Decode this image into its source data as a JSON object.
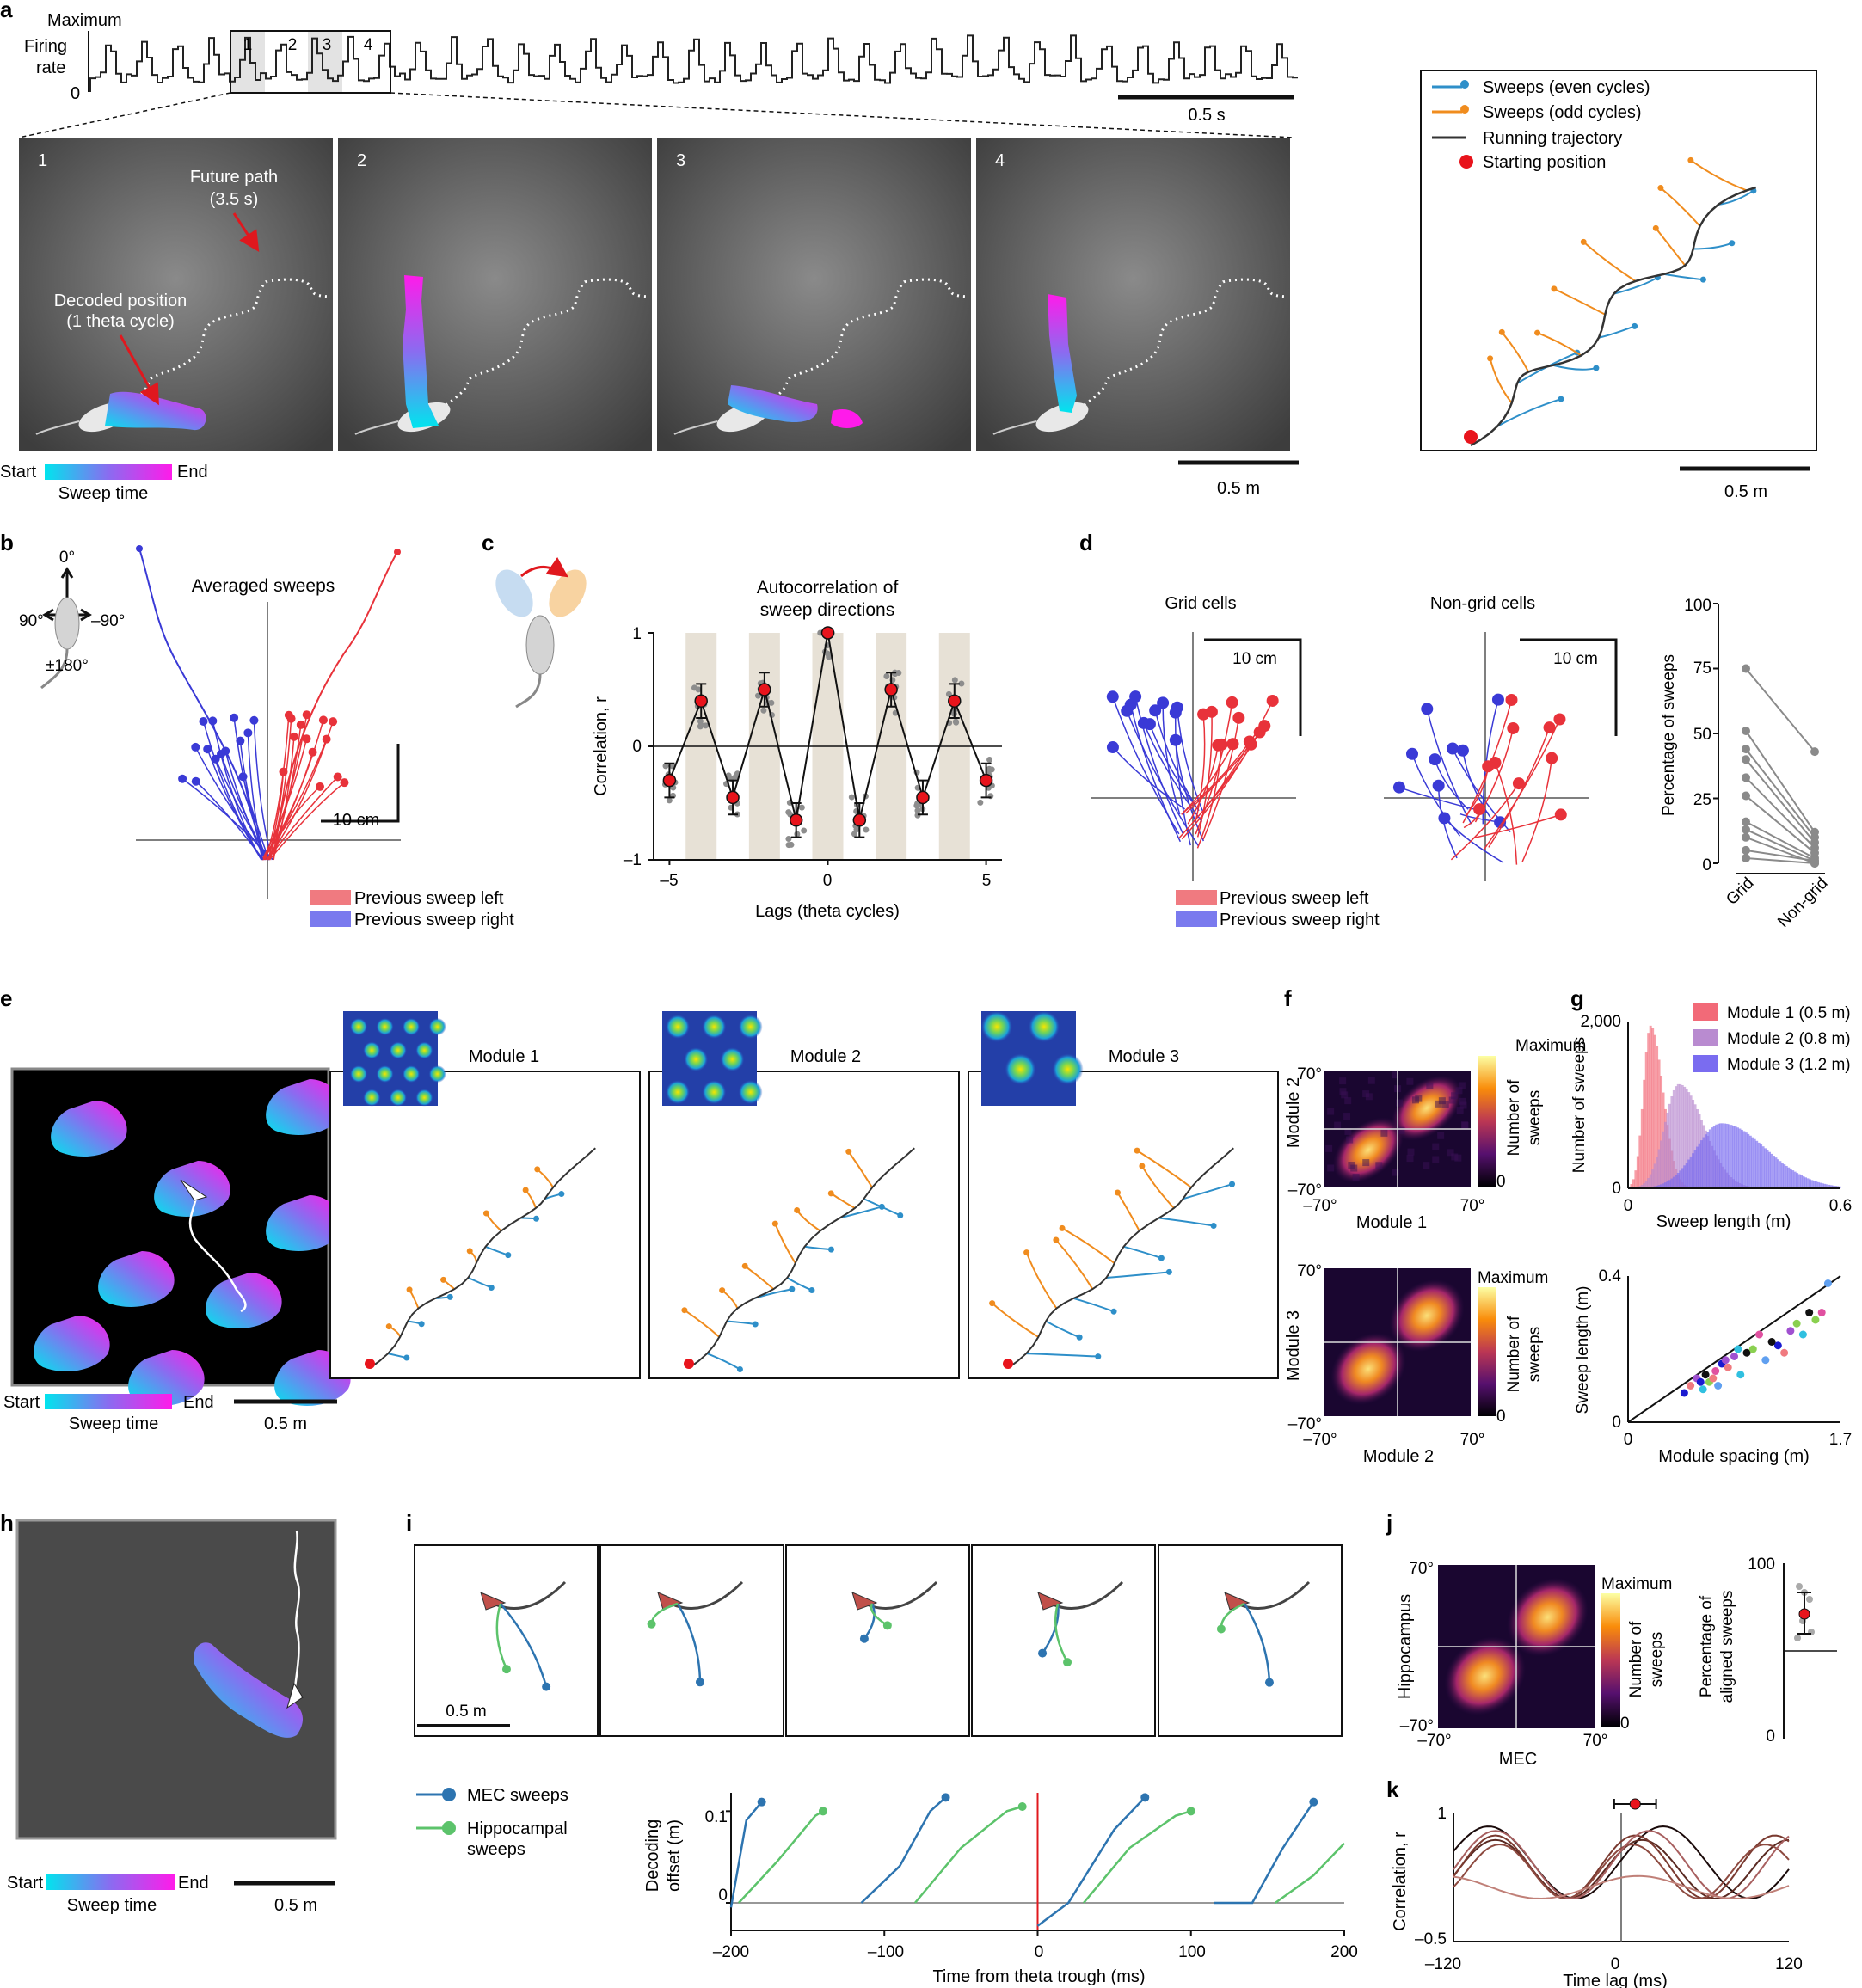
{
  "panel_letters": {
    "a": "a",
    "b": "b",
    "c": "c",
    "d": "d",
    "e": "e",
    "f": "f",
    "g": "g",
    "h": "h",
    "i": "i",
    "j": "j",
    "k": "k"
  },
  "panel_a": {
    "y_max": "Maximum",
    "y_label_1": "Firing",
    "y_label_2": "rate",
    "y_zero": "0",
    "time_scale": "0.5 s",
    "cycles": [
      "1",
      "2",
      "3",
      "4"
    ],
    "frames": [
      "1",
      "2",
      "3",
      "4"
    ],
    "future_path_1": "Future path",
    "future_path_2": "(3.5 s)",
    "decoded_1": "Decoded position",
    "decoded_2": "(1 theta cycle)",
    "colorbar_start": "Start",
    "colorbar_end": "End",
    "colorbar_label": "Sweep time",
    "space_scale": "0.5 m",
    "legend": [
      "Sweeps (even cycles)",
      "Sweeps (odd cycles)",
      "Running trajectory",
      "Starting position"
    ],
    "traj_scale": "0.5 m"
  },
  "panel_b": {
    "title": "Averaged sweeps",
    "angle_top": "0°",
    "angle_left": "90°",
    "angle_right": "–90°",
    "angle_bottom": "±180°",
    "scale": "10 cm",
    "legend": [
      "Previous sweep left",
      "Previous sweep right"
    ]
  },
  "panel_c": {
    "title_1": "Autocorrelation of",
    "title_2": "sweep directions",
    "ylabel": "Correlation, r",
    "xlabel": "Lags (theta cycles)",
    "yticks": [
      "1",
      "0",
      "–1"
    ],
    "xticks": [
      "–5",
      "0",
      "5"
    ]
  },
  "panel_d": {
    "grid_title": "Grid cells",
    "nongrid_title": "Non-grid cells",
    "scale": "10 cm",
    "legend": [
      "Previous sweep left",
      "Previous sweep right"
    ],
    "ylabel": "Percentage of sweeps",
    "yticks": [
      "100",
      "75",
      "50",
      "25",
      "0"
    ],
    "xticks": [
      "Grid",
      "Non-grid"
    ]
  },
  "panel_e": {
    "modules": [
      "Module 1",
      "Module 2",
      "Module 3"
    ],
    "colorbar_start": "Start",
    "colorbar_end": "End",
    "colorbar_label": "Sweep time",
    "scale": "0.5 m"
  },
  "panel_f": {
    "top": {
      "ylabel": "Module 2",
      "xlabel": "Module 1",
      "ymax": "70°",
      "ymin": "–70°",
      "xmin": "–70°",
      "xmax": "70°"
    },
    "bottom": {
      "ylabel": "Module 3",
      "xlabel": "Module 2",
      "ymax": "70°",
      "ymin": "–70°",
      "xmin": "–70°",
      "xmax": "70°"
    },
    "cbar_max": "Maximum",
    "cbar_min": "0",
    "cbar_label_1": "Number of",
    "cbar_label_2": "sweeps"
  },
  "panel_h": {
    "colorbar_start": "Start",
    "colorbar_end": "End",
    "colorbar_label": "Sweep time",
    "scale": "0.5 m"
  },
  "panel_i": {
    "scale": "0.5 m",
    "legend": [
      "MEC sweeps",
      "Hippocampal",
      "sweeps"
    ],
    "ylabel_1": "Decoding",
    "ylabel_2": "offset (m)",
    "xlabel": "Time from theta trough (ms)",
    "xticks": [
      "–200",
      "–100",
      "0",
      "100",
      "200"
    ],
    "yticks": [
      "0.1",
      "0"
    ]
  },
  "panel_j": {
    "ylabel": "Hippocampus",
    "xlabel": "MEC",
    "ymax": "70°",
    "ymin": "–70°",
    "xmin": "–70°",
    "xmax": "70°",
    "cbar_max": "Maximum",
    "cbar_min": "0",
    "cbar_label_1": "Number of",
    "cbar_label_2": "sweeps",
    "pct_ylabel_1": "Percentage of",
    "pct_ylabel_2": "aligned sweeps",
    "pct_yticks": [
      "100",
      "0"
    ]
  },
  "panel_k": {
    "ylabel": "Correlation, r",
    "xlabel": "Time lag (ms)",
    "yticks": [
      "1",
      "–0.5"
    ],
    "xticks": [
      "–120",
      "0",
      "120"
    ]
  },
  "colors": {
    "even": "#2e8fc9",
    "odd": "#f08c1e",
    "traj": "#333333",
    "start": "#e8141c",
    "left": "#e8323a",
    "right": "#3a3ad6",
    "mec": "#2d74b0",
    "hpc": "#5cc36b",
    "mod1": "#f26a78",
    "mod2": "#b98bd0",
    "mod3": "#7a6cf0"
  },
  "chart_data": [
    {
      "type": "line",
      "title": "Autocorrelation of sweep directions",
      "xlabel": "Lags (theta cycles)",
      "ylabel": "Correlation, r",
      "x": [
        -5,
        -4,
        -3,
        -2,
        -1,
        0,
        1,
        2,
        3,
        4,
        5
      ],
      "y": [
        -0.3,
        0.4,
        -0.45,
        0.5,
        -0.65,
        1.0,
        -0.65,
        0.5,
        -0.45,
        0.4,
        -0.3
      ],
      "xlim": [
        -5.5,
        5.5
      ],
      "ylim": [
        -1,
        1
      ]
    },
    {
      "type": "line",
      "ylabel": "Percentage of sweeps",
      "categories": [
        "Grid",
        "Non-grid"
      ],
      "pairs": [
        [
          75,
          43
        ],
        [
          51,
          12
        ],
        [
          44,
          10
        ],
        [
          40,
          8
        ],
        [
          33,
          6
        ],
        [
          26,
          4
        ],
        [
          16,
          2
        ],
        [
          13,
          1
        ],
        [
          10,
          0
        ],
        [
          5,
          1
        ],
        [
          2,
          0
        ]
      ],
      "ylim": [
        0,
        100
      ]
    },
    {
      "type": "bar",
      "xlabel": "Sweep length (m)",
      "ylabel": "Number of sweeps",
      "xlim": [
        0,
        0.6
      ],
      "ylim": [
        0,
        2000
      ],
      "series": [
        {
          "name": "Module 1 (0.5 m)",
          "peak_x": 0.06,
          "peak": 1950
        },
        {
          "name": "Module 2 (0.8 m)",
          "peak_x": 0.14,
          "peak": 1250
        },
        {
          "name": "Module 3 (1.2 m)",
          "peak_x": 0.26,
          "peak": 780
        }
      ]
    },
    {
      "type": "scatter",
      "xlabel": "Module spacing (m)",
      "ylabel": "Sweep length (m)",
      "xlim": [
        0,
        1.7
      ],
      "ylim": [
        0,
        0.4
      ],
      "x": [
        0.45,
        0.5,
        0.55,
        0.6,
        0.62,
        0.65,
        0.7,
        0.72,
        0.75,
        0.8,
        0.85,
        0.9,
        0.95,
        1.0,
        1.05,
        1.1,
        1.2,
        1.25,
        1.3,
        1.4,
        1.45,
        1.5,
        1.55,
        1.6,
        0.58,
        0.68,
        0.78,
        0.88,
        1.15,
        1.35
      ],
      "y": [
        0.08,
        0.1,
        0.12,
        0.09,
        0.13,
        0.11,
        0.14,
        0.1,
        0.16,
        0.15,
        0.18,
        0.13,
        0.19,
        0.2,
        0.24,
        0.17,
        0.21,
        0.19,
        0.25,
        0.24,
        0.3,
        0.28,
        0.3,
        0.38,
        0.11,
        0.12,
        0.17,
        0.2,
        0.22,
        0.27
      ]
    },
    {
      "type": "line",
      "xlabel": "Time from theta trough (ms)",
      "ylabel": "Decoding offset (m)",
      "xlim": [
        -200,
        200
      ],
      "ylim": [
        -0.03,
        0.12
      ],
      "series": [
        {
          "name": "MEC sweeps",
          "values": [
            [
              -200,
              -0.005
            ],
            [
              -190,
              0.09
            ],
            [
              -180,
              0.11
            ]
          ]
        },
        {
          "name": "MEC sweeps",
          "values": [
            [
              -115,
              0.0
            ],
            [
              -90,
              0.04
            ],
            [
              -70,
              0.1
            ],
            [
              -60,
              0.115
            ]
          ]
        },
        {
          "name": "MEC sweeps",
          "values": [
            [
              0,
              -0.025
            ],
            [
              20,
              0.0
            ],
            [
              50,
              0.08
            ],
            [
              70,
              0.115
            ]
          ]
        },
        {
          "name": "MEC sweeps",
          "values": [
            [
              115,
              0.0
            ],
            [
              140,
              0.0
            ],
            [
              160,
              0.06
            ],
            [
              180,
              0.11
            ]
          ]
        },
        {
          "name": "Hippocampal sweeps",
          "values": [
            [
              -195,
              0.0
            ],
            [
              -170,
              0.045
            ],
            [
              -145,
              0.095
            ],
            [
              -140,
              0.1
            ]
          ]
        },
        {
          "name": "Hippocampal sweeps",
          "values": [
            [
              -80,
              0.0
            ],
            [
              -50,
              0.06
            ],
            [
              -20,
              0.1
            ],
            [
              -10,
              0.105
            ]
          ]
        },
        {
          "name": "Hippocampal sweeps",
          "values": [
            [
              30,
              0.0
            ],
            [
              60,
              0.06
            ],
            [
              90,
              0.095
            ],
            [
              100,
              0.1
            ]
          ]
        },
        {
          "name": "Hippocampal sweeps",
          "values": [
            [
              155,
              0.0
            ],
            [
              180,
              0.03
            ],
            [
              200,
              0.065
            ]
          ]
        }
      ]
    },
    {
      "type": "line",
      "xlabel": "Time lag (ms)",
      "ylabel": "Correlation, r",
      "xlim": [
        -120,
        120
      ],
      "ylim": [
        -0.5,
        1
      ],
      "marker": {
        "x": 10,
        "y": 1.05,
        "err": 15
      }
    }
  ]
}
